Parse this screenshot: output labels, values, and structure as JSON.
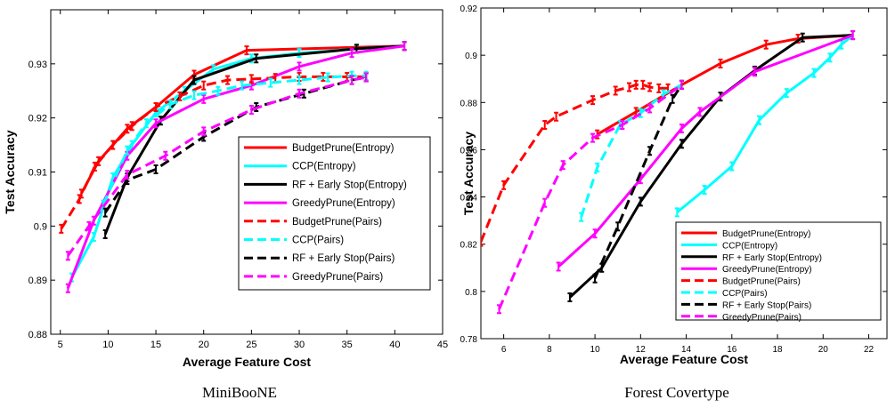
{
  "chart_data": [
    {
      "type": "line",
      "title": "MiniBooNE",
      "xlabel": "Average Feature Cost",
      "ylabel": "Test Accuracy",
      "xlim": [
        4,
        45
      ],
      "ylim": [
        0.88,
        0.94
      ],
      "xticks": [
        5,
        10,
        15,
        20,
        25,
        30,
        35,
        40,
        45
      ],
      "xtick_labels": [
        "5",
        "10",
        "15",
        "20",
        "25",
        "30",
        "35",
        "40",
        "45"
      ],
      "yticks": [
        0.88,
        0.89,
        0.9,
        0.91,
        0.92,
        0.93
      ],
      "ytick_labels": [
        "0.88",
        "0.89",
        "0.9",
        "0.91",
        "0.92",
        "0.93"
      ],
      "grid": false,
      "legend_position": "center-right",
      "series": [
        {
          "name": "BudgetPrune(Entropy)",
          "color": "#ff0000",
          "dash": "solid",
          "x": [
            7.2,
            9.0,
            12.0,
            15.0,
            19.0,
            24.5,
            41.0
          ],
          "y": [
            0.906,
            0.912,
            0.918,
            0.922,
            0.928,
            0.9325,
            0.9333
          ]
        },
        {
          "name": "CCP(Entropy)",
          "color": "#00ffff",
          "dash": "solid",
          "x": [
            6.2,
            8.5,
            10.5,
            12.5,
            15.0,
            18.0,
            21.0,
            25.0,
            30.0,
            36.0,
            41.0
          ],
          "y": [
            0.8905,
            0.898,
            0.909,
            0.915,
            0.921,
            0.925,
            0.929,
            0.931,
            0.932,
            0.9328,
            0.9333
          ]
        },
        {
          "name": "RF + Early Stop(Entropy)",
          "color": "#000000",
          "dash": "solid",
          "x": [
            9.7,
            12.0,
            15.5,
            19.0,
            25.5,
            36.0,
            41.0
          ],
          "y": [
            0.8985,
            0.909,
            0.9195,
            0.927,
            0.931,
            0.9328,
            0.9333
          ]
        },
        {
          "name": "GreedyPrune(Entropy)",
          "color": "#ff00ff",
          "dash": "solid",
          "x": [
            5.8,
            8.5,
            12.0,
            15.0,
            20.0,
            25.0,
            30.0,
            35.5,
            41.0
          ],
          "y": [
            0.8885,
            0.901,
            0.913,
            0.919,
            0.9235,
            0.926,
            0.9295,
            0.932,
            0.9333
          ]
        },
        {
          "name": "BudgetPrune(Pairs)",
          "color": "#ff0000",
          "dash": "dashed",
          "x": [
            5.1,
            7.0,
            8.6,
            10.5,
            12.5,
            15.0,
            17.5,
            20.0,
            22.5,
            25.0,
            27.5,
            30.0,
            32.5,
            35.0,
            37.0
          ],
          "y": [
            0.8995,
            0.905,
            0.911,
            0.915,
            0.9185,
            0.922,
            0.924,
            0.926,
            0.927,
            0.9272,
            0.9274,
            0.9276,
            0.9276,
            0.9276,
            0.9276
          ]
        },
        {
          "name": "CCP(Pairs)",
          "color": "#00ffff",
          "dash": "dashed",
          "x": [
            9.5,
            12.0,
            14.0,
            16.5,
            19.0,
            21.5,
            24.0,
            27.0,
            30.0,
            33.0,
            35.5,
            37.0
          ],
          "y": [
            0.904,
            0.914,
            0.919,
            0.9225,
            0.9242,
            0.925,
            0.926,
            0.9265,
            0.927,
            0.9275,
            0.9278,
            0.9278
          ]
        },
        {
          "name": "RF + Early Stop(Pairs)",
          "color": "#000000",
          "dash": "dashed",
          "x": [
            9.7,
            12.0,
            15.0,
            20.0,
            25.5,
            30.5,
            35.5,
            37.0
          ],
          "y": [
            0.9025,
            0.9085,
            0.9105,
            0.9165,
            0.922,
            0.9245,
            0.927,
            0.9275
          ]
        },
        {
          "name": "GreedyPrune(Pairs)",
          "color": "#ff00ff",
          "dash": "dashed",
          "x": [
            5.8,
            8.0,
            12.0,
            16.0,
            20.0,
            25.0,
            30.0,
            35.5,
            37.0
          ],
          "y": [
            0.8945,
            0.9,
            0.9095,
            0.913,
            0.9175,
            0.9215,
            0.9245,
            0.927,
            0.9275
          ]
        }
      ]
    },
    {
      "type": "line",
      "title": "Forest Covertype",
      "xlabel": "Average Feature Cost",
      "ylabel": "Test Accuracy",
      "xlim": [
        5,
        22.8
      ],
      "ylim": [
        0.78,
        0.92
      ],
      "xticks": [
        6,
        8,
        10,
        12,
        14,
        16,
        18,
        20,
        22
      ],
      "xtick_labels": [
        "6",
        "8",
        "10",
        "12",
        "14",
        "16",
        "18",
        "20",
        "22"
      ],
      "yticks": [
        0.78,
        0.8,
        0.82,
        0.84,
        0.86,
        0.88,
        0.9,
        0.92
      ],
      "ytick_labels": [
        "0.78",
        "0.8",
        "0.82",
        "0.84",
        "0.86",
        "0.88",
        "0.9",
        "0.92"
      ],
      "grid": false,
      "legend_position": "bottom-right",
      "series": [
        {
          "name": "BudgetPrune(Entropy)",
          "color": "#ff0000",
          "dash": "solid",
          "x": [
            10.1,
            11.8,
            13.8,
            15.5,
            17.5,
            18.9,
            21.3
          ],
          "y": [
            0.8665,
            0.876,
            0.8875,
            0.8965,
            0.9045,
            0.907,
            0.9085
          ]
        },
        {
          "name": "CCP(Entropy)",
          "color": "#00ffff",
          "dash": "solid",
          "x": [
            13.6,
            14.8,
            16.0,
            17.2,
            18.4,
            19.6,
            20.3,
            20.8,
            21.3
          ],
          "y": [
            0.8335,
            0.843,
            0.853,
            0.8725,
            0.884,
            0.8925,
            0.899,
            0.9045,
            0.9085
          ]
        },
        {
          "name": "RF + Early Stop(Entropy)",
          "color": "#000000",
          "dash": "solid",
          "x": [
            8.9,
            10.3,
            12.0,
            13.8,
            15.5,
            17.0,
            19.1,
            21.3
          ],
          "y": [
            0.7975,
            0.81,
            0.838,
            0.8625,
            0.8825,
            0.8935,
            0.9075,
            0.9085
          ]
        },
        {
          "name": "GreedyPrune(Entropy)",
          "color": "#ff00ff",
          "dash": "solid",
          "x": [
            8.4,
            10.0,
            12.0,
            13.8,
            14.6,
            17.0,
            21.3
          ],
          "y": [
            0.8105,
            0.8245,
            0.8475,
            0.869,
            0.876,
            0.893,
            0.9085
          ]
        },
        {
          "name": "BudgetPrune(Pairs)",
          "color": "#ff0000",
          "dash": "dashed",
          "x": [
            5.0,
            6.0,
            7.8,
            8.3,
            9.9,
            10.9,
            11.5,
            11.8,
            12.1,
            12.4,
            12.8,
            13.2
          ],
          "y": [
            0.821,
            0.845,
            0.8705,
            0.874,
            0.881,
            0.885,
            0.8865,
            0.8875,
            0.8875,
            0.8865,
            0.886,
            0.886
          ]
        },
        {
          "name": "CCP(Pairs)",
          "color": "#00ffff",
          "dash": "dashed",
          "x": [
            9.4,
            10.1,
            11.1,
            12.0,
            13.0,
            13.8
          ],
          "y": [
            0.8315,
            0.8525,
            0.8705,
            0.8755,
            0.8835,
            0.8875
          ]
        },
        {
          "name": "RF + Early Stop(Pairs)",
          "color": "#000000",
          "dash": "dashed",
          "x": [
            10.0,
            11.0,
            12.4,
            13.4,
            13.8
          ],
          "y": [
            0.8055,
            0.8275,
            0.8595,
            0.8815,
            0.8875
          ]
        },
        {
          "name": "GreedyPrune(Pairs)",
          "color": "#ff00ff",
          "dash": "dashed",
          "x": [
            5.8,
            7.8,
            8.6,
            9.9,
            11.2,
            12.4,
            13.8
          ],
          "y": [
            0.7925,
            0.8375,
            0.8535,
            0.865,
            0.8705,
            0.8775,
            0.8875
          ]
        }
      ]
    }
  ],
  "captions": {
    "left": "MiniBooNE",
    "right": "Forest Covertype"
  }
}
